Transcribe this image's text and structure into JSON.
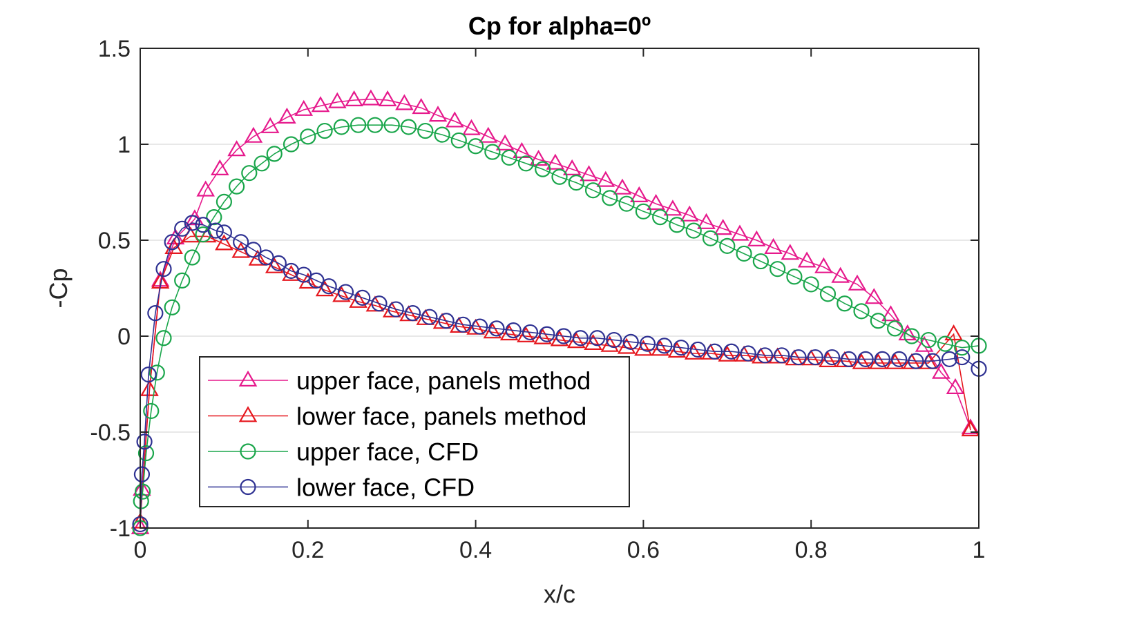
{
  "chart_data": {
    "type": "line",
    "title": "Cp for alpha=0º",
    "xlabel": "x/c",
    "ylabel": "-Cp",
    "xlim": [
      0,
      1
    ],
    "ylim": [
      -1,
      1.5
    ],
    "xticks": [
      0,
      0.2,
      0.4,
      0.6,
      0.8,
      1
    ],
    "xtick_labels": [
      "0",
      "0.2",
      "0.4",
      "0.6",
      "0.8",
      "1"
    ],
    "yticks": [
      -1,
      -0.5,
      0,
      0.5,
      1,
      1.5
    ],
    "ytick_labels": [
      "-1",
      "-0.5",
      "0",
      "0.5",
      "1",
      "1.5"
    ],
    "grid": "horizontal",
    "legend_position": "lower-left",
    "series": [
      {
        "name": "upper face, panels method",
        "color": "#e6198c",
        "marker": "triangle",
        "points": [
          [
            0.0,
            -1.0
          ],
          [
            0.002,
            -0.8
          ],
          [
            0.011,
            -0.28
          ],
          [
            0.024,
            0.29
          ],
          [
            0.042,
            0.51
          ],
          [
            0.065,
            0.61
          ],
          [
            0.078,
            0.76
          ],
          [
            0.095,
            0.87
          ],
          [
            0.115,
            0.97
          ],
          [
            0.135,
            1.04
          ],
          [
            0.155,
            1.09
          ],
          [
            0.175,
            1.14
          ],
          [
            0.195,
            1.18
          ],
          [
            0.215,
            1.2
          ],
          [
            0.235,
            1.22
          ],
          [
            0.255,
            1.23
          ],
          [
            0.275,
            1.235
          ],
          [
            0.295,
            1.23
          ],
          [
            0.315,
            1.21
          ],
          [
            0.335,
            1.19
          ],
          [
            0.355,
            1.15
          ],
          [
            0.375,
            1.12
          ],
          [
            0.395,
            1.08
          ],
          [
            0.415,
            1.04
          ],
          [
            0.435,
            1.0
          ],
          [
            0.455,
            0.96
          ],
          [
            0.475,
            0.92
          ],
          [
            0.495,
            0.9
          ],
          [
            0.515,
            0.87
          ],
          [
            0.535,
            0.84
          ],
          [
            0.555,
            0.81
          ],
          [
            0.575,
            0.77
          ],
          [
            0.595,
            0.73
          ],
          [
            0.615,
            0.69
          ],
          [
            0.635,
            0.66
          ],
          [
            0.655,
            0.63
          ],
          [
            0.675,
            0.59
          ],
          [
            0.695,
            0.56
          ],
          [
            0.715,
            0.53
          ],
          [
            0.735,
            0.5
          ],
          [
            0.755,
            0.46
          ],
          [
            0.775,
            0.43
          ],
          [
            0.795,
            0.39
          ],
          [
            0.815,
            0.36
          ],
          [
            0.835,
            0.31
          ],
          [
            0.855,
            0.27
          ],
          [
            0.875,
            0.2
          ],
          [
            0.895,
            0.11
          ],
          [
            0.915,
            0.01
          ],
          [
            0.935,
            -0.05
          ],
          [
            0.955,
            -0.19
          ],
          [
            0.972,
            -0.27
          ],
          [
            0.99,
            -0.48
          ]
        ]
      },
      {
        "name": "lower face, panels method",
        "color": "#e6171e",
        "marker": "triangle",
        "points": [
          [
            0.0,
            -0.97
          ],
          [
            0.011,
            -0.28
          ],
          [
            0.024,
            0.28
          ],
          [
            0.04,
            0.46
          ],
          [
            0.06,
            0.52
          ],
          [
            0.08,
            0.52
          ],
          [
            0.1,
            0.48
          ],
          [
            0.12,
            0.44
          ],
          [
            0.14,
            0.4
          ],
          [
            0.16,
            0.36
          ],
          [
            0.18,
            0.32
          ],
          [
            0.2,
            0.28
          ],
          [
            0.22,
            0.24
          ],
          [
            0.24,
            0.21
          ],
          [
            0.26,
            0.18
          ],
          [
            0.28,
            0.16
          ],
          [
            0.3,
            0.13
          ],
          [
            0.32,
            0.11
          ],
          [
            0.34,
            0.09
          ],
          [
            0.36,
            0.07
          ],
          [
            0.38,
            0.05
          ],
          [
            0.4,
            0.04
          ],
          [
            0.42,
            0.02
          ],
          [
            0.44,
            0.01
          ],
          [
            0.46,
            0.0
          ],
          [
            0.48,
            -0.01
          ],
          [
            0.5,
            -0.02
          ],
          [
            0.52,
            -0.03
          ],
          [
            0.54,
            -0.04
          ],
          [
            0.56,
            -0.05
          ],
          [
            0.58,
            -0.06
          ],
          [
            0.6,
            -0.07
          ],
          [
            0.62,
            -0.07
          ],
          [
            0.64,
            -0.08
          ],
          [
            0.66,
            -0.09
          ],
          [
            0.68,
            -0.09
          ],
          [
            0.7,
            -0.1
          ],
          [
            0.72,
            -0.1
          ],
          [
            0.74,
            -0.11
          ],
          [
            0.76,
            -0.11
          ],
          [
            0.78,
            -0.12
          ],
          [
            0.8,
            -0.12
          ],
          [
            0.82,
            -0.13
          ],
          [
            0.84,
            -0.13
          ],
          [
            0.86,
            -0.14
          ],
          [
            0.88,
            -0.14
          ],
          [
            0.9,
            -0.14
          ],
          [
            0.92,
            -0.14
          ],
          [
            0.94,
            -0.14
          ],
          [
            0.97,
            0.01
          ],
          [
            0.99,
            -0.49
          ]
        ]
      },
      {
        "name": "upper face, CFD",
        "color": "#1aa64b",
        "marker": "circle",
        "points": [
          [
            0.0,
            -1.0
          ],
          [
            0.001,
            -0.86
          ],
          [
            0.003,
            -0.81
          ],
          [
            0.007,
            -0.61
          ],
          [
            0.013,
            -0.39
          ],
          [
            0.02,
            -0.19
          ],
          [
            0.028,
            -0.01
          ],
          [
            0.038,
            0.15
          ],
          [
            0.05,
            0.29
          ],
          [
            0.062,
            0.41
          ],
          [
            0.075,
            0.53
          ],
          [
            0.088,
            0.62
          ],
          [
            0.1,
            0.7
          ],
          [
            0.115,
            0.78
          ],
          [
            0.13,
            0.85
          ],
          [
            0.145,
            0.9
          ],
          [
            0.16,
            0.95
          ],
          [
            0.18,
            1.0
          ],
          [
            0.2,
            1.04
          ],
          [
            0.22,
            1.07
          ],
          [
            0.24,
            1.09
          ],
          [
            0.26,
            1.1
          ],
          [
            0.28,
            1.1
          ],
          [
            0.3,
            1.1
          ],
          [
            0.32,
            1.09
          ],
          [
            0.34,
            1.07
          ],
          [
            0.36,
            1.05
          ],
          [
            0.38,
            1.02
          ],
          [
            0.4,
            0.99
          ],
          [
            0.42,
            0.96
          ],
          [
            0.44,
            0.93
          ],
          [
            0.46,
            0.9
          ],
          [
            0.48,
            0.87
          ],
          [
            0.5,
            0.83
          ],
          [
            0.52,
            0.8
          ],
          [
            0.54,
            0.76
          ],
          [
            0.56,
            0.72
          ],
          [
            0.58,
            0.69
          ],
          [
            0.6,
            0.65
          ],
          [
            0.62,
            0.62
          ],
          [
            0.64,
            0.58
          ],
          [
            0.66,
            0.55
          ],
          [
            0.68,
            0.51
          ],
          [
            0.7,
            0.47
          ],
          [
            0.72,
            0.43
          ],
          [
            0.74,
            0.39
          ],
          [
            0.76,
            0.35
          ],
          [
            0.78,
            0.31
          ],
          [
            0.8,
            0.27
          ],
          [
            0.82,
            0.22
          ],
          [
            0.84,
            0.17
          ],
          [
            0.86,
            0.13
          ],
          [
            0.88,
            0.08
          ],
          [
            0.9,
            0.04
          ],
          [
            0.92,
            0.0
          ],
          [
            0.94,
            -0.02
          ],
          [
            0.96,
            -0.04
          ],
          [
            0.98,
            -0.06
          ],
          [
            1.0,
            -0.05
          ]
        ]
      },
      {
        "name": "lower face, CFD",
        "color": "#2e3192",
        "marker": "circle",
        "points": [
          [
            0.0,
            -0.98
          ],
          [
            0.002,
            -0.72
          ],
          [
            0.005,
            -0.55
          ],
          [
            0.01,
            -0.2
          ],
          [
            0.018,
            0.12
          ],
          [
            0.028,
            0.35
          ],
          [
            0.038,
            0.49
          ],
          [
            0.05,
            0.56
          ],
          [
            0.062,
            0.59
          ],
          [
            0.075,
            0.58
          ],
          [
            0.09,
            0.55
          ],
          [
            0.1,
            0.54
          ],
          [
            0.12,
            0.49
          ],
          [
            0.135,
            0.45
          ],
          [
            0.15,
            0.41
          ],
          [
            0.165,
            0.38
          ],
          [
            0.18,
            0.34
          ],
          [
            0.195,
            0.32
          ],
          [
            0.21,
            0.29
          ],
          [
            0.225,
            0.26
          ],
          [
            0.245,
            0.23
          ],
          [
            0.265,
            0.2
          ],
          [
            0.285,
            0.17
          ],
          [
            0.305,
            0.14
          ],
          [
            0.325,
            0.12
          ],
          [
            0.345,
            0.1
          ],
          [
            0.365,
            0.08
          ],
          [
            0.385,
            0.06
          ],
          [
            0.405,
            0.05
          ],
          [
            0.425,
            0.04
          ],
          [
            0.445,
            0.03
          ],
          [
            0.465,
            0.02
          ],
          [
            0.485,
            0.01
          ],
          [
            0.505,
            0.0
          ],
          [
            0.525,
            -0.01
          ],
          [
            0.545,
            -0.01
          ],
          [
            0.565,
            -0.02
          ],
          [
            0.585,
            -0.03
          ],
          [
            0.605,
            -0.04
          ],
          [
            0.625,
            -0.05
          ],
          [
            0.645,
            -0.06
          ],
          [
            0.665,
            -0.07
          ],
          [
            0.685,
            -0.08
          ],
          [
            0.705,
            -0.08
          ],
          [
            0.725,
            -0.09
          ],
          [
            0.745,
            -0.1
          ],
          [
            0.765,
            -0.1
          ],
          [
            0.785,
            -0.11
          ],
          [
            0.805,
            -0.11
          ],
          [
            0.825,
            -0.11
          ],
          [
            0.845,
            -0.12
          ],
          [
            0.865,
            -0.12
          ],
          [
            0.885,
            -0.12
          ],
          [
            0.905,
            -0.12
          ],
          [
            0.925,
            -0.13
          ],
          [
            0.945,
            -0.13
          ],
          [
            0.965,
            -0.12
          ],
          [
            0.98,
            -0.11
          ],
          [
            1.0,
            -0.17
          ]
        ]
      }
    ]
  }
}
